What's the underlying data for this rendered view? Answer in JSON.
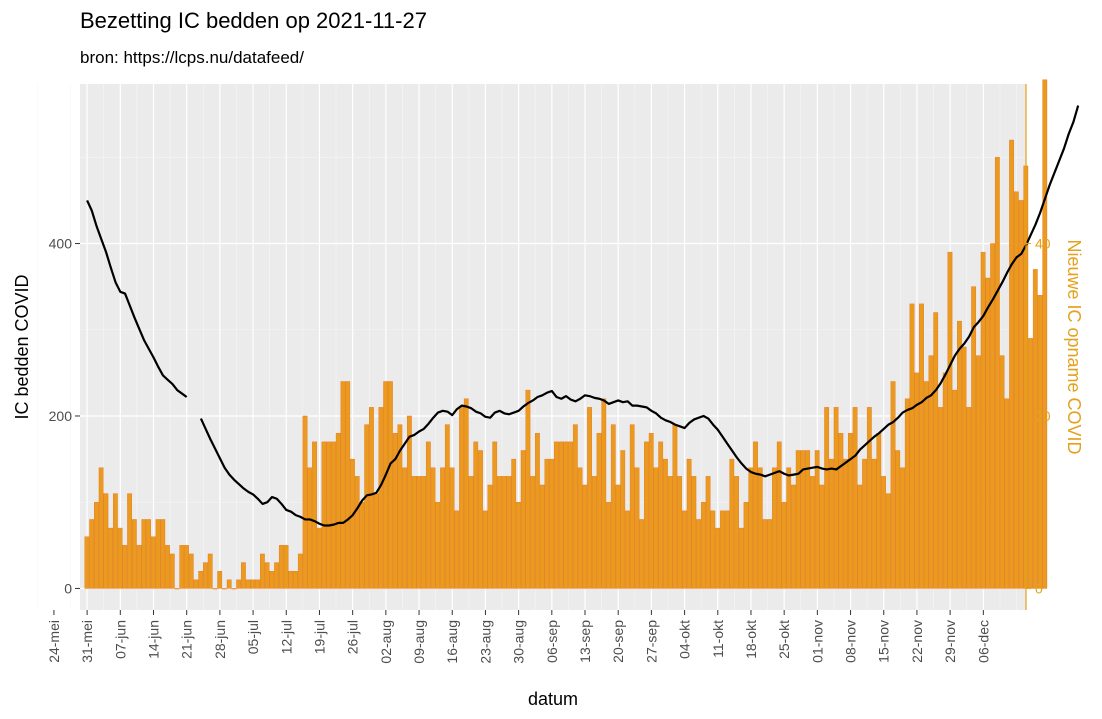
{
  "chart_data": {
    "type": "bar",
    "title": "Bezetting IC bedden op 2021-11-27",
    "subtitle": "bron: https://lcps.nu/datafeed/",
    "xlabel": "datum",
    "ylabel_left": "IC bedden COVID",
    "ylabel_right": "Nieuwe IC opname COVID",
    "x_ticks": [
      "24-mei",
      "31-mei",
      "07-jun",
      "14-jun",
      "21-jun",
      "28-jun",
      "05-jul",
      "12-jul",
      "19-jul",
      "26-jul",
      "02-aug",
      "09-aug",
      "16-aug",
      "23-aug",
      "30-aug",
      "06-sep",
      "13-sep",
      "20-sep",
      "27-sep",
      "04-okt",
      "11-okt",
      "18-okt",
      "25-okt",
      "01-nov",
      "08-nov",
      "15-nov",
      "22-nov",
      "29-nov",
      "06-dec"
    ],
    "y_ticks_left": [
      "0",
      "200",
      "400"
    ],
    "y_ticks_right": [
      "0",
      "20",
      "40"
    ],
    "xlim_days": [
      -1.5,
      198
    ],
    "ylim_left": [
      -25,
      585
    ],
    "ylim_right": [
      -2.5,
      58.5
    ],
    "grid": true,
    "bar_color": "#E99A1F",
    "bar_outline": "#E8731E",
    "line_color": "#000000",
    "right_axis_color": "#E6A01C",
    "series": [
      {
        "name": "Nieuwe IC opname COVID",
        "kind": "bar",
        "axis": "right",
        "start_date": "2021-05-31",
        "values": [
          6,
          8,
          10,
          14,
          11,
          7,
          11,
          7,
          5,
          11,
          8,
          5,
          8,
          8,
          6,
          8,
          8,
          5,
          4,
          0,
          5,
          5,
          4,
          1,
          2,
          3,
          4,
          0,
          2,
          0,
          1,
          0,
          1,
          3,
          1,
          1,
          1,
          4,
          3,
          2,
          3,
          5,
          5,
          2,
          2,
          4,
          20,
          14,
          17,
          7,
          17,
          17,
          17,
          18,
          24,
          24,
          15,
          13,
          10,
          19,
          21,
          11,
          21,
          24,
          24,
          18,
          19,
          14,
          20,
          13,
          13,
          13,
          17,
          14,
          10,
          14,
          19,
          14,
          9,
          21,
          22,
          13,
          17,
          16,
          9,
          12,
          17,
          13,
          13,
          13,
          15,
          10,
          16,
          23,
          13,
          18,
          12,
          15,
          15,
          17,
          17,
          17,
          17,
          19,
          14,
          12,
          21,
          13,
          18,
          22,
          10,
          19,
          12,
          16,
          9,
          19,
          14,
          8,
          17,
          18,
          14,
          17,
          15,
          13,
          19,
          13,
          9,
          15,
          13,
          8,
          10,
          13,
          9,
          7,
          9,
          9,
          15,
          13,
          7,
          10,
          14,
          17,
          14,
          8,
          8,
          14,
          17,
          10,
          14,
          12,
          16,
          16,
          16,
          13,
          16,
          12,
          21,
          15,
          21,
          18,
          15,
          18,
          21,
          12,
          15,
          21,
          15,
          18,
          13,
          11,
          24,
          16,
          14,
          22,
          33,
          25,
          33,
          24,
          27,
          32,
          21,
          25,
          39,
          23,
          31,
          28,
          21,
          35,
          27,
          39,
          36,
          40,
          50,
          27,
          22,
          52,
          46,
          45,
          49,
          29,
          37,
          34,
          59
        ]
      },
      {
        "name": "IC bedden COVID",
        "kind": "line",
        "axis": "left",
        "segments": [
          {
            "start_day": 0,
            "values": [
              450,
              438,
              420,
              405,
              390,
              372,
              355,
              344,
              342,
              328,
              314,
              301,
              288,
              278,
              268,
              257,
              247,
              242,
              237,
              230,
              226,
              222
            ]
          },
          {
            "start_day": 24,
            "values": [
              197,
              185,
              173,
              162,
              151,
              140,
              132,
              126,
              121,
              116,
              112,
              109,
              104,
              98,
              100,
              106,
              104,
              98,
              91,
              89,
              85,
              83,
              80,
              80,
              78,
              75,
              73,
              73,
              74,
              76,
              76,
              80,
              85,
              93,
              102,
              108,
              109,
              111,
              120,
              132,
              145,
              150,
              160,
              168,
              176,
              178,
              182,
              185,
              191,
              198,
              204,
              206,
              205,
              201,
              208,
              212,
              211,
              209,
              205,
              203,
              199,
              198,
              204,
              206,
              203,
              202,
              204,
              206,
              211,
              215,
              218,
              222,
              224,
              227,
              229,
              222,
              220,
              223,
              219,
              217,
              220,
              224,
              223,
              221,
              220,
              218,
              214,
              216,
              218,
              216,
              217,
              212,
              212,
              211,
              210,
              206,
              203,
              198,
              195,
              193,
              190,
              188,
              186,
              192,
              196,
              198,
              200,
              197,
              190,
              184,
              176,
              168,
              160,
              152,
              145,
              139,
              135,
              133,
              132,
              130,
              132,
              134,
              136,
              133,
              131,
              132,
              133,
              138,
              139,
              140,
              141,
              139,
              138,
              139,
              138,
              142,
              146,
              150,
              154,
              161,
              166,
              171,
              176,
              180,
              185,
              190,
              193,
              198,
              204,
              207,
              209,
              213,
              216,
              221,
              224,
              230,
              238,
              248,
              259,
              270,
              278,
              284,
              292,
              303,
              309,
              316,
              326,
              335,
              345,
              355,
              366,
              376,
              384,
              388,
              398,
              410,
              422,
              436,
              452,
              468,
              482,
              496,
              510,
              527,
              541,
              560
            ]
          }
        ]
      }
    ]
  }
}
